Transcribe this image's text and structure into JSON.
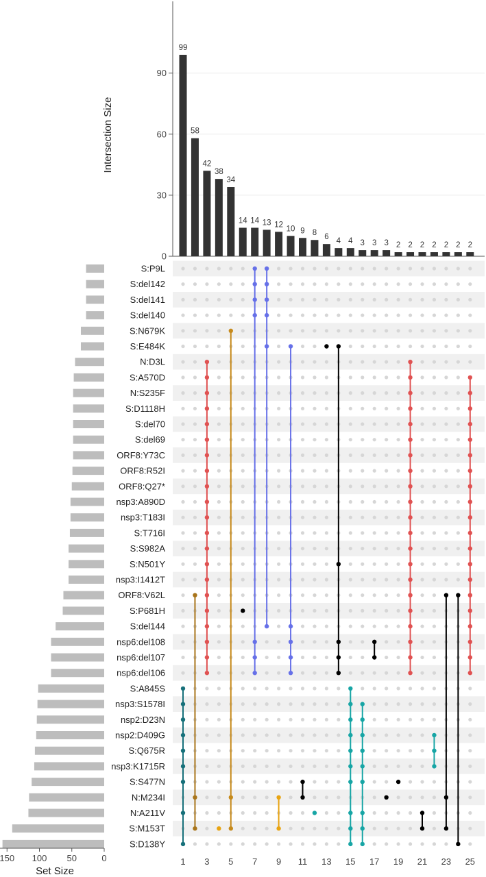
{
  "chart_data": {
    "type": "bar",
    "subtype": "upset",
    "ylabel": "Intersection Size",
    "set_size_label": "Set Size",
    "ylim": [
      0,
      110
    ],
    "yticks": [
      0,
      30,
      60,
      90
    ],
    "set_size_ticks": [
      150,
      100,
      50,
      0
    ],
    "set_size_lim": [
      0,
      170
    ],
    "x_ticks": [
      1,
      3,
      5,
      7,
      9,
      11,
      13,
      15,
      17,
      19,
      21,
      23,
      25
    ],
    "bar_color": "#333333",
    "set_bar_color": "#bdbdbd",
    "intersection_sizes": [
      99,
      58,
      42,
      38,
      34,
      14,
      14,
      13,
      12,
      10,
      9,
      8,
      6,
      4,
      4,
      3,
      3,
      3,
      2,
      2,
      2,
      2,
      2,
      2,
      2
    ],
    "sets": [
      {
        "name": "S:P9L",
        "size": 28
      },
      {
        "name": "S:del142",
        "size": 28
      },
      {
        "name": "S:del141",
        "size": 28
      },
      {
        "name": "S:del140",
        "size": 28
      },
      {
        "name": "S:N679K",
        "size": 36
      },
      {
        "name": "S:E484K",
        "size": 36
      },
      {
        "name": "N:D3L",
        "size": 45
      },
      {
        "name": "S:A570D",
        "size": 47
      },
      {
        "name": "N:S235F",
        "size": 48
      },
      {
        "name": "S:D1118H",
        "size": 48
      },
      {
        "name": "S:del70",
        "size": 48
      },
      {
        "name": "S:del69",
        "size": 48
      },
      {
        "name": "ORF8:Y73C",
        "size": 48
      },
      {
        "name": "ORF8:R52I",
        "size": 49
      },
      {
        "name": "ORF8:Q27*",
        "size": 50
      },
      {
        "name": "nsp3:A890D",
        "size": 52
      },
      {
        "name": "nsp3:T183I",
        "size": 52
      },
      {
        "name": "S:T716I",
        "size": 53
      },
      {
        "name": "S:S982A",
        "size": 55
      },
      {
        "name": "S:N501Y",
        "size": 55
      },
      {
        "name": "nsp3:I1412T",
        "size": 55
      },
      {
        "name": "ORF8:V62L",
        "size": 63
      },
      {
        "name": "S:P681H",
        "size": 64
      },
      {
        "name": "S:del144",
        "size": 75
      },
      {
        "name": "nsp6:del108",
        "size": 82
      },
      {
        "name": "nsp6:del107",
        "size": 82
      },
      {
        "name": "nsp6:del106",
        "size": 82
      },
      {
        "name": "S:A845S",
        "size": 102
      },
      {
        "name": "nsp3:S1578I",
        "size": 103
      },
      {
        "name": "nsp2:D23N",
        "size": 104
      },
      {
        "name": "nsp2:D409G",
        "size": 105
      },
      {
        "name": "S:Q675R",
        "size": 107
      },
      {
        "name": "nsp3:K1715R",
        "size": 108
      },
      {
        "name": "S:S477N",
        "size": 112
      },
      {
        "name": "N:M234I",
        "size": 116
      },
      {
        "name": "N:A211V",
        "size": 117
      },
      {
        "name": "S:M153T",
        "size": 142
      },
      {
        "name": "S:D138Y",
        "size": 157
      }
    ],
    "intersections": [
      {
        "col": 1,
        "color": "#17707a",
        "sets": [
          27,
          28,
          29,
          30,
          31,
          32,
          33,
          35,
          37
        ]
      },
      {
        "col": 2,
        "color": "#a8741a",
        "sets": [
          21,
          34,
          36
        ]
      },
      {
        "col": 3,
        "color": "#e05252",
        "sets": [
          6,
          7,
          8,
          9,
          10,
          11,
          12,
          13,
          14,
          15,
          16,
          17,
          18,
          19,
          20,
          21,
          22,
          23,
          24,
          25,
          26
        ]
      },
      {
        "col": 4,
        "color": "#e8a412",
        "sets": [
          36
        ]
      },
      {
        "col": 5,
        "color": "#c68a1c",
        "sets": [
          4,
          34,
          36
        ]
      },
      {
        "col": 6,
        "color": "#000000",
        "sets": [
          22
        ]
      },
      {
        "col": 7,
        "color": "#6670e8",
        "sets": [
          0,
          1,
          2,
          3,
          24,
          25,
          26
        ]
      },
      {
        "col": 8,
        "color": "#6670e8",
        "sets": [
          0,
          1,
          2,
          3,
          5,
          23
        ]
      },
      {
        "col": 9,
        "color": "#e8a412",
        "sets": [
          34,
          36
        ]
      },
      {
        "col": 10,
        "color": "#6670e8",
        "sets": [
          5,
          23,
          24,
          25,
          26
        ]
      },
      {
        "col": 11,
        "color": "#000000",
        "sets": [
          33,
          34
        ]
      },
      {
        "col": 12,
        "color": "#17a5a5",
        "sets": [
          35
        ]
      },
      {
        "col": 13,
        "color": "#000000",
        "sets": [
          5
        ]
      },
      {
        "col": 14,
        "color": "#000000",
        "sets": [
          5,
          19,
          24,
          25,
          26
        ]
      },
      {
        "col": 15,
        "color": "#17a5a5",
        "sets": [
          27,
          28,
          29,
          30,
          31,
          32,
          33,
          35,
          36,
          37
        ]
      },
      {
        "col": 16,
        "color": "#17a5a5",
        "sets": [
          28,
          29,
          30,
          31,
          32,
          33,
          35,
          36,
          37
        ]
      },
      {
        "col": 17,
        "color": "#000000",
        "sets": [
          24,
          25
        ]
      },
      {
        "col": 18,
        "color": "#000000",
        "sets": [
          34
        ]
      },
      {
        "col": 19,
        "color": "#000000",
        "sets": [
          33
        ]
      },
      {
        "col": 20,
        "color": "#e05252",
        "sets": [
          6,
          7,
          8,
          9,
          10,
          11,
          12,
          13,
          14,
          15,
          16,
          17,
          18,
          19,
          20,
          21,
          22,
          23,
          24,
          25,
          26
        ]
      },
      {
        "col": 21,
        "color": "#000000",
        "sets": [
          35,
          36
        ]
      },
      {
        "col": 22,
        "color": "#17a5a5",
        "sets": [
          30,
          31,
          32
        ]
      },
      {
        "col": 23,
        "color": "#000000",
        "sets": [
          21,
          34,
          36
        ]
      },
      {
        "col": 24,
        "color": "#000000",
        "sets": [
          21,
          37
        ]
      },
      {
        "col": 25,
        "color": "#e05252",
        "sets": [
          7,
          8,
          9,
          10,
          11,
          12,
          13,
          14,
          15,
          16,
          17,
          18,
          19,
          20,
          21,
          22,
          23,
          24,
          25,
          26
        ]
      }
    ]
  }
}
